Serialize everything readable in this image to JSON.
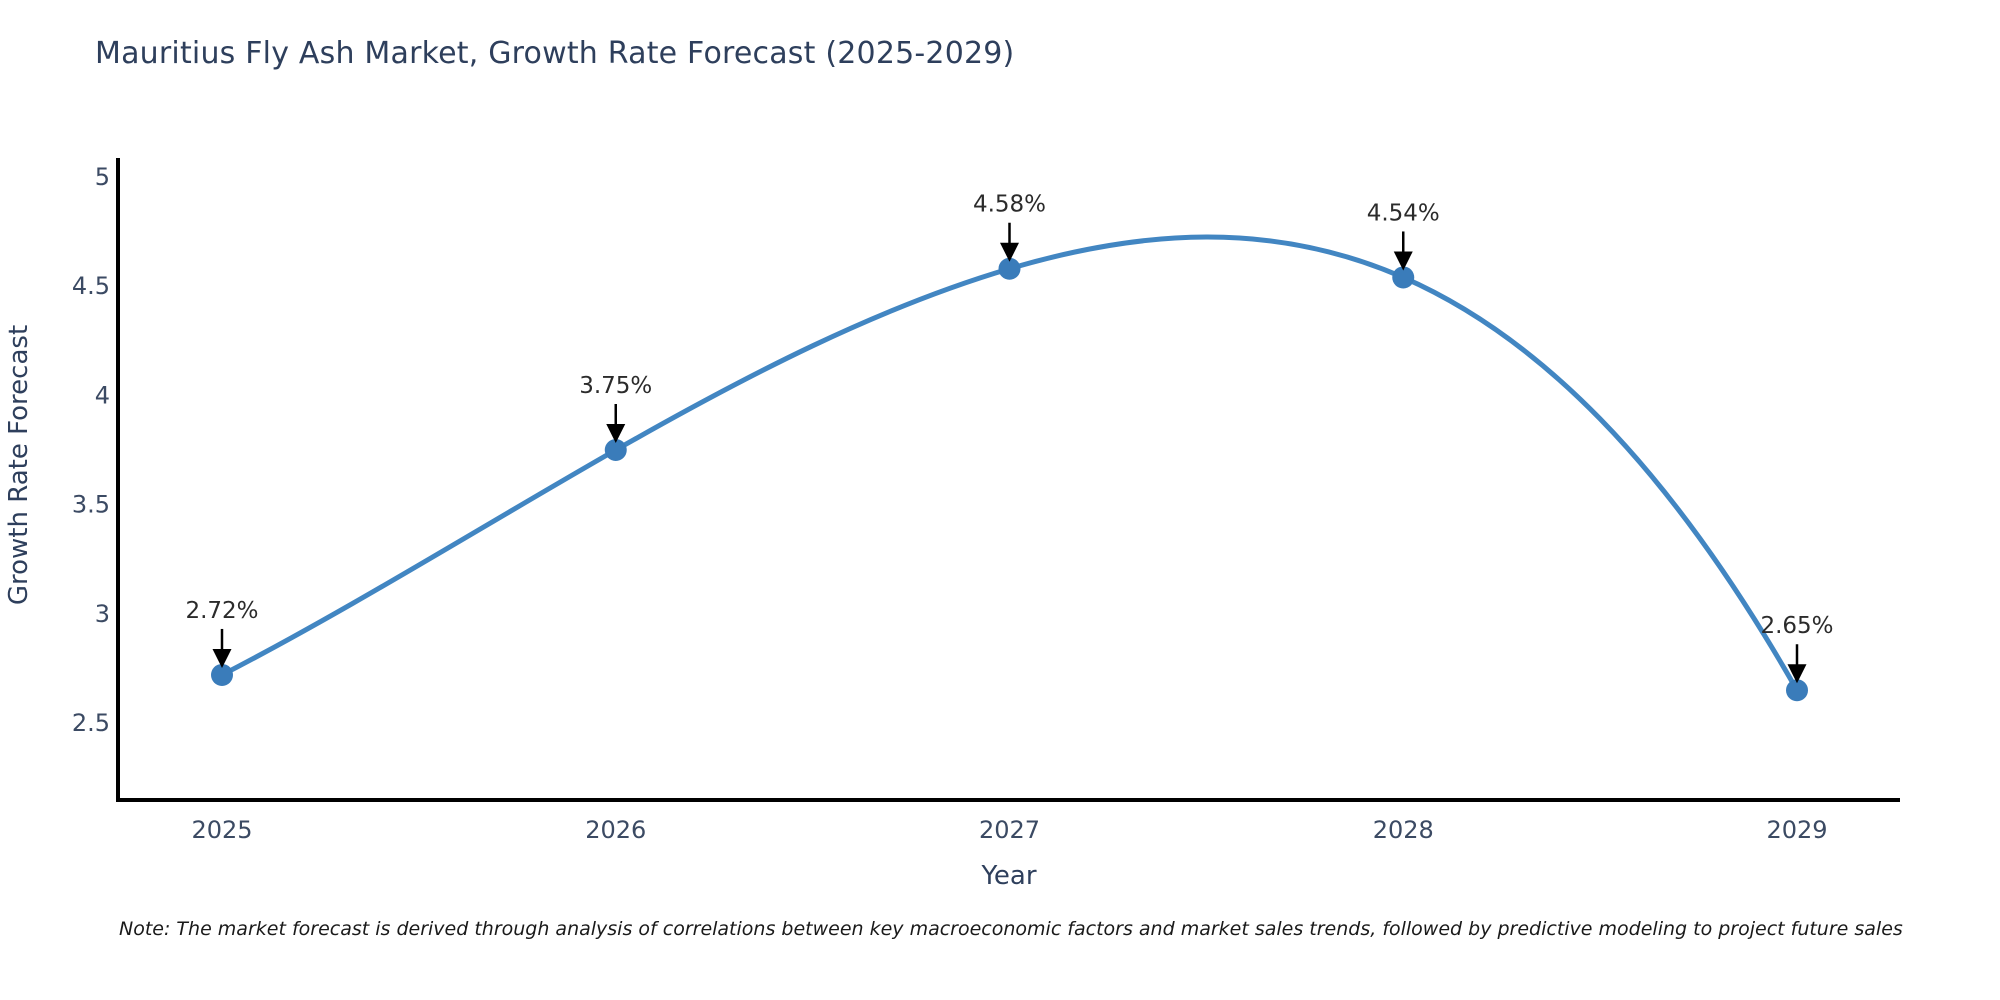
{
  "title": "Mauritius Fly Ash Market, Growth Rate Forecast (2025-2029)",
  "note": "Note: The market forecast is derived through analysis of correlations between key macroeconomic factors and market sales trends, followed by predictive modeling to project future sales",
  "chart_data": {
    "type": "line",
    "title": "Mauritius Fly Ash Market, Growth Rate Forecast (2025-2029)",
    "xlabel": "Year",
    "ylabel": "Growth Rate Forecast",
    "x": [
      2025,
      2026,
      2027,
      2028,
      2029
    ],
    "values": [
      2.72,
      3.75,
      4.58,
      4.54,
      2.65
    ],
    "point_labels": [
      "2.72%",
      "3.75%",
      "4.58%",
      "4.54%",
      "2.65%"
    ],
    "x_tick_labels": [
      "2025",
      "2026",
      "2027",
      "2028",
      "2029"
    ],
    "y_ticks": [
      2.5,
      3,
      3.5,
      4,
      4.5,
      5
    ],
    "y_tick_labels": [
      "2.5",
      "3",
      "3.5",
      "4",
      "4.5",
      "5"
    ],
    "ylim": [
      2.16,
      5.08
    ],
    "xlim": [
      2024.74,
      2029.26
    ],
    "grid": false,
    "legend": null,
    "curve": "smooth-spline",
    "colors": {
      "line": "#4286c2",
      "marker": "#3a7cba",
      "axis": "#000000",
      "title_text": "#2e3f5c",
      "tick_text": "#3b4a63",
      "annotation_text": "#2b2b2b",
      "arrow": "#000000",
      "background": "#ffffff"
    }
  }
}
